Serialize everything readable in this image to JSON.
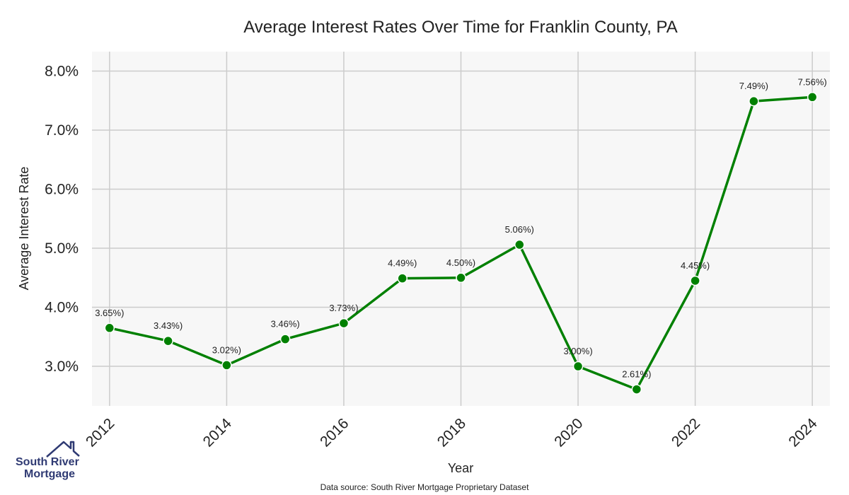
{
  "chart_data": {
    "type": "line",
    "title": "Average Interest Rates Over Time for Franklin County, PA",
    "xlabel": "Year",
    "ylabel": "Average Interest Rate",
    "x": [
      2012,
      2013,
      2014,
      2015,
      2016,
      2017,
      2018,
      2019,
      2020,
      2021,
      2022,
      2023,
      2024
    ],
    "series": [
      {
        "values": [
          3.65,
          3.43,
          3.02,
          3.46,
          3.73,
          4.49,
          4.5,
          5.06,
          3.0,
          2.61,
          4.45,
          7.49,
          7.56
        ],
        "data_labels": [
          "3.65%)",
          "3.43%)",
          "3.02%)",
          "3.46%)",
          "3.73%)",
          "4.49%)",
          "4.50%)",
          "5.06%)",
          "3.00%)",
          "2.61%)",
          "4.45%)",
          "7.49%)",
          "7.56%)"
        ],
        "color": "#008000"
      }
    ],
    "xticks": [
      "2012",
      "2014",
      "2016",
      "2018",
      "2020",
      "2022",
      "2024"
    ],
    "yticks": [
      "3.0%",
      "4.0%",
      "5.0%",
      "6.0%",
      "7.0%",
      "8.0%"
    ],
    "ylim": [
      2.33,
      8.33
    ],
    "xlim": [
      2011.7,
      2024.3
    ],
    "grid": true,
    "background": "#f7f7f7",
    "gridColor": "#cccccc"
  },
  "footer": {
    "source": "Data source: South River Mortgage Proprietary Dataset"
  },
  "logo": {
    "line1": "South River",
    "line2": "Mortgage",
    "icon": "house-roof-icon"
  }
}
